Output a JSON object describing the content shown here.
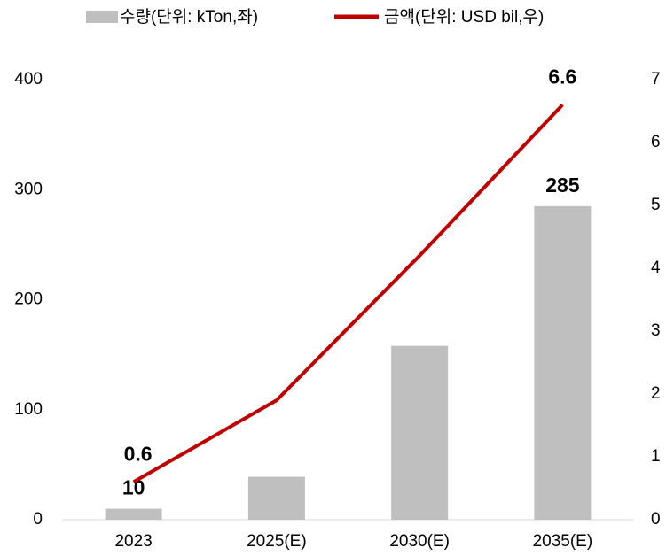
{
  "chart_data": {
    "type": "bar_line",
    "categories": [
      "2023",
      "2025(E)",
      "2030(E)",
      "2035(E)"
    ],
    "series": [
      {
        "name": "수량(단위: kTon,좌)",
        "color": "#bfbfbf",
        "type": "bar",
        "values": [
          10,
          39,
          158,
          285
        ],
        "value_labels": [
          "10",
          null,
          null,
          "285"
        ]
      },
      {
        "name": "금액(단위: USD bil,우)",
        "color": "#c00000",
        "type": "line",
        "axis": "y2",
        "values": [
          0.6,
          1.9,
          4.2,
          6.6
        ],
        "value_labels": [
          "0.6",
          null,
          null,
          "6.6"
        ]
      }
    ],
    "ylim": [
      0,
      400
    ],
    "yticks": [
      0,
      100,
      200,
      300,
      400
    ],
    "y2lim": [
      0,
      7
    ],
    "y2ticks": [
      0,
      1,
      2,
      3,
      4,
      5,
      6,
      7
    ],
    "legend": "top"
  }
}
